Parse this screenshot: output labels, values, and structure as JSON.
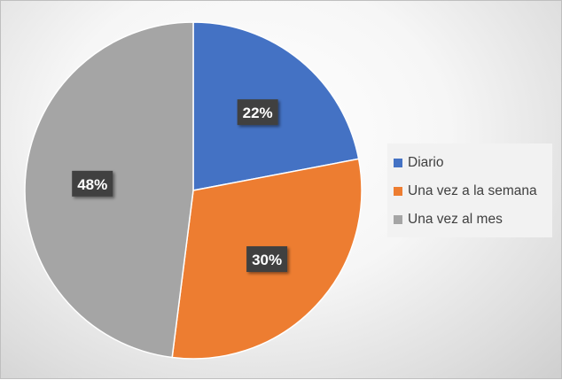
{
  "chart_data": {
    "type": "pie",
    "categories": [
      "Diario",
      "Una vez a la semana",
      "Una vez al mes"
    ],
    "values": [
      22,
      30,
      48
    ],
    "data_labels": [
      "22%",
      "30%",
      "48%"
    ],
    "colors": [
      "#4472c4",
      "#ed7d31",
      "#a5a5a5"
    ],
    "legend_position": "right",
    "title": ""
  }
}
